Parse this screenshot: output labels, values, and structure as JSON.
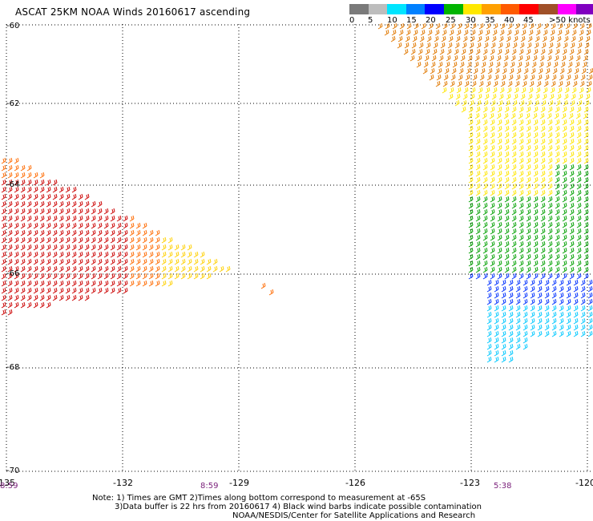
{
  "title": "ASCAT 25KM NOAA Winds 20160617 ascending",
  "legend": {
    "colors": [
      "#7a7a7a",
      "#bdbdbd",
      "#00e5ff",
      "#0080ff",
      "#0000ff",
      "#00b400",
      "#ffe800",
      "#ffa000",
      "#ff5a00",
      "#ff0000",
      "#a05028",
      "#ff00ff",
      "#8000c0"
    ],
    "labels": [
      "0",
      "5",
      "10",
      "15",
      "20",
      "25",
      "30",
      "35",
      "40",
      "45",
      ">50 knots"
    ]
  },
  "axes": {
    "lat_labels": [
      "-60",
      "-62",
      "-64",
      "-66",
      "-68",
      "-70"
    ],
    "lon_labels": [
      "-135",
      "-132",
      "-129",
      "-126",
      "-123",
      "-120"
    ]
  },
  "times": [
    "8:59",
    "8:59",
    "5:38"
  ],
  "notes": {
    "line1": "Note: 1) Times are GMT 2)Times along bottom correspond to measurement at -65S",
    "line2": "3)Data buffer is 22 hrs from 20160617 4) Black wind barbs indicate possible contamination",
    "credit": "NOAA/NESDIS/Center for Satellite Applications and Research"
  },
  "swaths": [
    {
      "name": "west-swath-red",
      "color": "#cc0000"
    },
    {
      "name": "west-swath-orange",
      "color": "#ff6a00"
    },
    {
      "name": "west-swath-yellow",
      "color": "#ffd000"
    },
    {
      "name": "east-swath-orange",
      "color": "#e07800"
    },
    {
      "name": "east-swath-yellow",
      "color": "#ffe600"
    },
    {
      "name": "east-swath-green",
      "color": "#00a000"
    },
    {
      "name": "east-swath-blue",
      "color": "#0030ff"
    },
    {
      "name": "east-swath-cyan",
      "color": "#00c8ff"
    }
  ]
}
